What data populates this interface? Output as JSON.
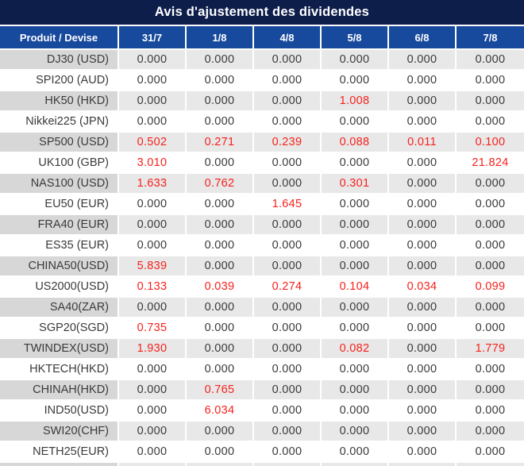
{
  "title": "Avis d'ajustement des dividendes",
  "colors": {
    "title_bar_bg": "#0d1e4b",
    "header_bg": "#17499d",
    "alt_row_label_bg": "#d7d7d7",
    "alt_row_value_bg": "#e8e8e8",
    "row_bg": "#ffffff",
    "grid_line": "#ffffff",
    "text": "#3a3a3a",
    "highlight_value": "#f7211c",
    "header_text": "#ffffff"
  },
  "table": {
    "columns": [
      "Produit / Devise",
      "31/7",
      "1/8",
      "4/8",
      "5/8",
      "6/8",
      "7/8"
    ],
    "rows": [
      {
        "product": "DJ30 (USD)",
        "values": [
          "0.000",
          "0.000",
          "0.000",
          "0.000",
          "0.000",
          "0.000"
        ],
        "red": []
      },
      {
        "product": "SPI200 (AUD)",
        "values": [
          "0.000",
          "0.000",
          "0.000",
          "0.000",
          "0.000",
          "0.000"
        ],
        "red": []
      },
      {
        "product": "HK50 (HKD)",
        "values": [
          "0.000",
          "0.000",
          "0.000",
          "1.008",
          "0.000",
          "0.000"
        ],
        "red": [
          3
        ]
      },
      {
        "product": "Nikkei225 (JPN)",
        "values": [
          "0.000",
          "0.000",
          "0.000",
          "0.000",
          "0.000",
          "0.000"
        ],
        "red": []
      },
      {
        "product": "SP500 (USD)",
        "values": [
          "0.502",
          "0.271",
          "0.239",
          "0.088",
          "0.011",
          "0.100"
        ],
        "red": [
          0,
          1,
          2,
          3,
          4,
          5
        ]
      },
      {
        "product": "UK100 (GBP)",
        "values": [
          "3.010",
          "0.000",
          "0.000",
          "0.000",
          "0.000",
          "21.824"
        ],
        "red": [
          0,
          5
        ]
      },
      {
        "product": "NAS100 (USD)",
        "values": [
          "1.633",
          "0.762",
          "0.000",
          "0.301",
          "0.000",
          "0.000"
        ],
        "red": [
          0,
          1,
          3
        ]
      },
      {
        "product": "EU50 (EUR)",
        "values": [
          "0.000",
          "0.000",
          "1.645",
          "0.000",
          "0.000",
          "0.000"
        ],
        "red": [
          2
        ]
      },
      {
        "product": "FRA40 (EUR)",
        "values": [
          "0.000",
          "0.000",
          "0.000",
          "0.000",
          "0.000",
          "0.000"
        ],
        "red": []
      },
      {
        "product": "ES35 (EUR)",
        "values": [
          "0.000",
          "0.000",
          "0.000",
          "0.000",
          "0.000",
          "0.000"
        ],
        "red": []
      },
      {
        "product": "CHINA50(USD)",
        "values": [
          "5.839",
          "0.000",
          "0.000",
          "0.000",
          "0.000",
          "0.000"
        ],
        "red": [
          0
        ]
      },
      {
        "product": "US2000(USD)",
        "values": [
          "0.133",
          "0.039",
          "0.274",
          "0.104",
          "0.034",
          "0.099"
        ],
        "red": [
          0,
          1,
          2,
          3,
          4,
          5
        ]
      },
      {
        "product": "SA40(ZAR)",
        "values": [
          "0.000",
          "0.000",
          "0.000",
          "0.000",
          "0.000",
          "0.000"
        ],
        "red": []
      },
      {
        "product": "SGP20(SGD)",
        "values": [
          "0.735",
          "0.000",
          "0.000",
          "0.000",
          "0.000",
          "0.000"
        ],
        "red": [
          0
        ]
      },
      {
        "product": "TWINDEX(USD)",
        "values": [
          "1.930",
          "0.000",
          "0.000",
          "0.082",
          "0.000",
          "1.779"
        ],
        "red": [
          0,
          3,
          5
        ]
      },
      {
        "product": "HKTECH(HKD)",
        "values": [
          "0.000",
          "0.000",
          "0.000",
          "0.000",
          "0.000",
          "0.000"
        ],
        "red": []
      },
      {
        "product": "CHINAH(HKD)",
        "values": [
          "0.000",
          "0.765",
          "0.000",
          "0.000",
          "0.000",
          "0.000"
        ],
        "red": [
          1
        ]
      },
      {
        "product": "IND50(USD)",
        "values": [
          "0.000",
          "6.034",
          "0.000",
          "0.000",
          "0.000",
          "0.000"
        ],
        "red": [
          1
        ]
      },
      {
        "product": "SWI20(CHF)",
        "values": [
          "0.000",
          "0.000",
          "0.000",
          "0.000",
          "0.000",
          "0.000"
        ],
        "red": []
      },
      {
        "product": "NETH25(EUR)",
        "values": [
          "0.000",
          "0.000",
          "0.000",
          "0.000",
          "0.000",
          "0.000"
        ],
        "red": []
      }
    ]
  }
}
